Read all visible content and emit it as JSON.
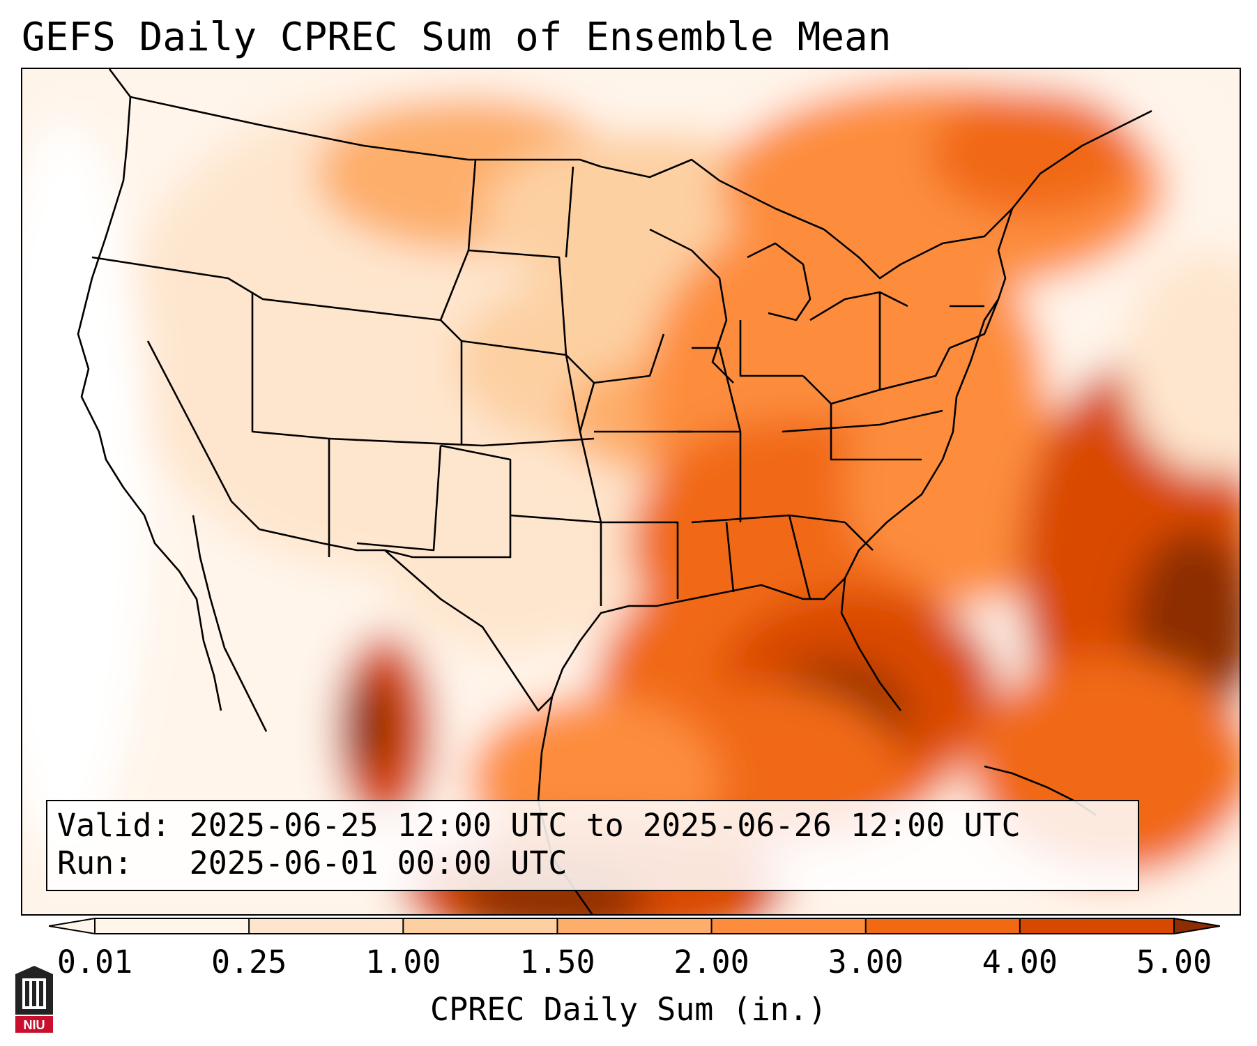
{
  "title": "GEFS Daily CPREC Sum of Ensemble Mean",
  "valid": {
    "label": "Valid:",
    "value": "2025-06-25 12:00 UTC to 2025-06-26 12:00 UTC"
  },
  "run": {
    "label": "Run:",
    "value": "2025-06-01 00:00 UTC"
  },
  "colorbar": {
    "label": "CPREC Daily Sum (in.)",
    "ticks": [
      "0.01",
      "0.25",
      "1.00",
      "1.50",
      "2.00",
      "3.00",
      "4.00",
      "5.00"
    ],
    "colors": [
      "#fff5eb",
      "#fee6ce",
      "#fdd0a2",
      "#fdae6b",
      "#fd8d3c",
      "#f16913",
      "#d94801",
      "#8c2d04"
    ],
    "extend": "both"
  },
  "logo": {
    "text": "NIU",
    "color": "#c8102e"
  }
}
